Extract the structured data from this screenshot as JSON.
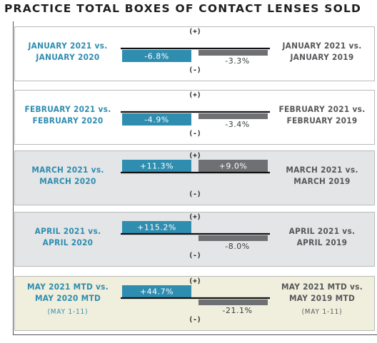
{
  "title": "PRACTICE TOTAL BOXES OF CONTACT LENSES SOLD",
  "colors": {
    "blue": "#2f8db0",
    "gray": "#6f7073",
    "label_gray": "#57585b",
    "panel_white": "#ffffff",
    "panel_gray": "#e4e5e6",
    "panel_cream": "#f0eedc"
  },
  "chart_data": {
    "type": "bar",
    "title": "PRACTICE TOTAL BOXES OF CONTACT LENSES SOLD",
    "orientation": "horizontal-pair-per-row",
    "positive_marker": "(+)",
    "negative_marker": "(-)",
    "rows": [
      {
        "left_label": [
          "JANUARY 2021 vs.",
          "JANUARY 2020"
        ],
        "right_label": [
          "JANUARY 2021 vs.",
          "JANUARY 2019"
        ],
        "vs_prior_year": -6.8,
        "vs_prior_year_label": "-6.8%",
        "vs_two_years": -3.3,
        "vs_two_years_label": "-3.3%",
        "background": "white"
      },
      {
        "left_label": [
          "FEBRUARY 2021 vs.",
          "FEBRUARY 2020"
        ],
        "right_label": [
          "FEBRUARY 2021 vs.",
          "FEBRUARY 2019"
        ],
        "vs_prior_year": -4.9,
        "vs_prior_year_label": "-4.9%",
        "vs_two_years": -3.4,
        "vs_two_years_label": "-3.4%",
        "background": "white"
      },
      {
        "left_label": [
          "MARCH 2021 vs.",
          "MARCH 2020"
        ],
        "right_label": [
          "MARCH 2021 vs.",
          "MARCH 2019"
        ],
        "vs_prior_year": 11.3,
        "vs_prior_year_label": "+11.3%",
        "vs_two_years": 9.0,
        "vs_two_years_label": "+9.0%",
        "background": "gray"
      },
      {
        "left_label": [
          "APRIL 2021 vs.",
          "APRIL 2020"
        ],
        "right_label": [
          "APRIL 2021 vs.",
          "APRIL 2019"
        ],
        "vs_prior_year": 115.2,
        "vs_prior_year_label": "+115.2%",
        "vs_two_years": -8.0,
        "vs_two_years_label": "-8.0%",
        "background": "gray"
      },
      {
        "left_label": [
          "MAY 2021 MTD vs.",
          "MAY 2020 MTD"
        ],
        "left_sub": "(MAY 1-11)",
        "right_label": [
          "MAY 2021 MTD vs.",
          "MAY 2019 MTD"
        ],
        "right_sub": "(MAY 1-11)",
        "vs_prior_year": 44.7,
        "vs_prior_year_label": "+44.7%",
        "vs_two_years": -21.1,
        "vs_two_years_label": "-21.1%",
        "background": "cream"
      }
    ]
  }
}
